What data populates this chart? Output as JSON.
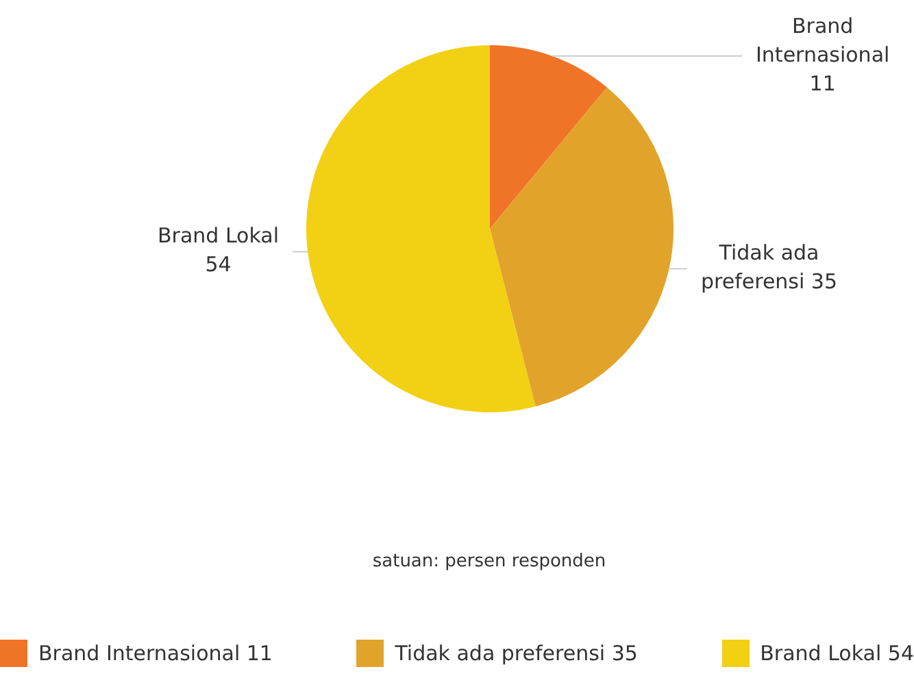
{
  "chart_data": {
    "type": "pie",
    "categories": [
      "Brand Internasional 11",
      "Tidak ada preferensi 35",
      "Brand Lokal 54"
    ],
    "values": [
      11,
      35,
      54
    ],
    "colors": [
      "#f07427",
      "#e2a32b",
      "#f2d013"
    ],
    "legend": "bottom",
    "annotations": [
      "satuan: persen responden"
    ]
  }
}
